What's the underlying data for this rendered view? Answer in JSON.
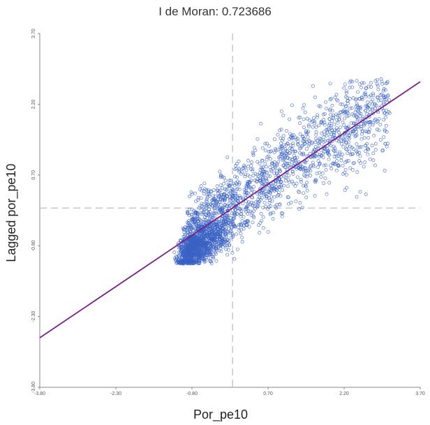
{
  "chart_data": {
    "type": "scatter",
    "title": "I de Moran: 0.723686",
    "xlabel": "Por_pe10",
    "ylabel": "Lagged por_pe10",
    "xlim": [
      -3.8,
      3.7
    ],
    "ylim": [
      -3.8,
      3.7
    ],
    "x_ticks": [
      "-3.80",
      "-2.30",
      "-0.80",
      "0.70",
      "2.20",
      "3.70"
    ],
    "y_ticks": [
      "-3.80",
      "-2.30",
      "-0.80",
      "0.70",
      "2.20",
      "3.70"
    ],
    "mean_x": 0.0,
    "mean_y": 0.0,
    "regression": {
      "slope": 0.723686,
      "intercept": 0.0
    },
    "reference_lines": "dashed",
    "grid": false,
    "legend": "none",
    "colors": {
      "points": "#3a62c4",
      "regression": "#7a1f8a",
      "reference": "#c8c8c8",
      "axis": "#888888"
    },
    "series": [
      {
        "sample_points": [
          [
            -1.1,
            -1.05
          ],
          [
            -1.0,
            -1.15
          ],
          [
            -0.9,
            -0.95
          ],
          [
            -0.8,
            -0.7
          ],
          [
            -0.7,
            -0.9
          ],
          [
            -0.6,
            -0.5
          ],
          [
            -0.5,
            -0.6
          ],
          [
            -0.4,
            -0.2
          ],
          [
            -0.3,
            -0.35
          ],
          [
            -0.2,
            -0.05
          ],
          [
            0.0,
            0.1
          ],
          [
            0.3,
            0.25
          ],
          [
            0.6,
            0.55
          ],
          [
            0.9,
            0.7
          ],
          [
            1.2,
            0.9
          ],
          [
            1.5,
            1.1
          ],
          [
            1.8,
            1.4
          ],
          [
            2.1,
            1.6
          ],
          [
            2.4,
            1.8
          ],
          [
            2.7,
            2.1
          ],
          [
            3.0,
            2.3
          ]
        ],
        "cluster_center": [
          -1.0,
          -1.0
        ]
      }
    ]
  }
}
